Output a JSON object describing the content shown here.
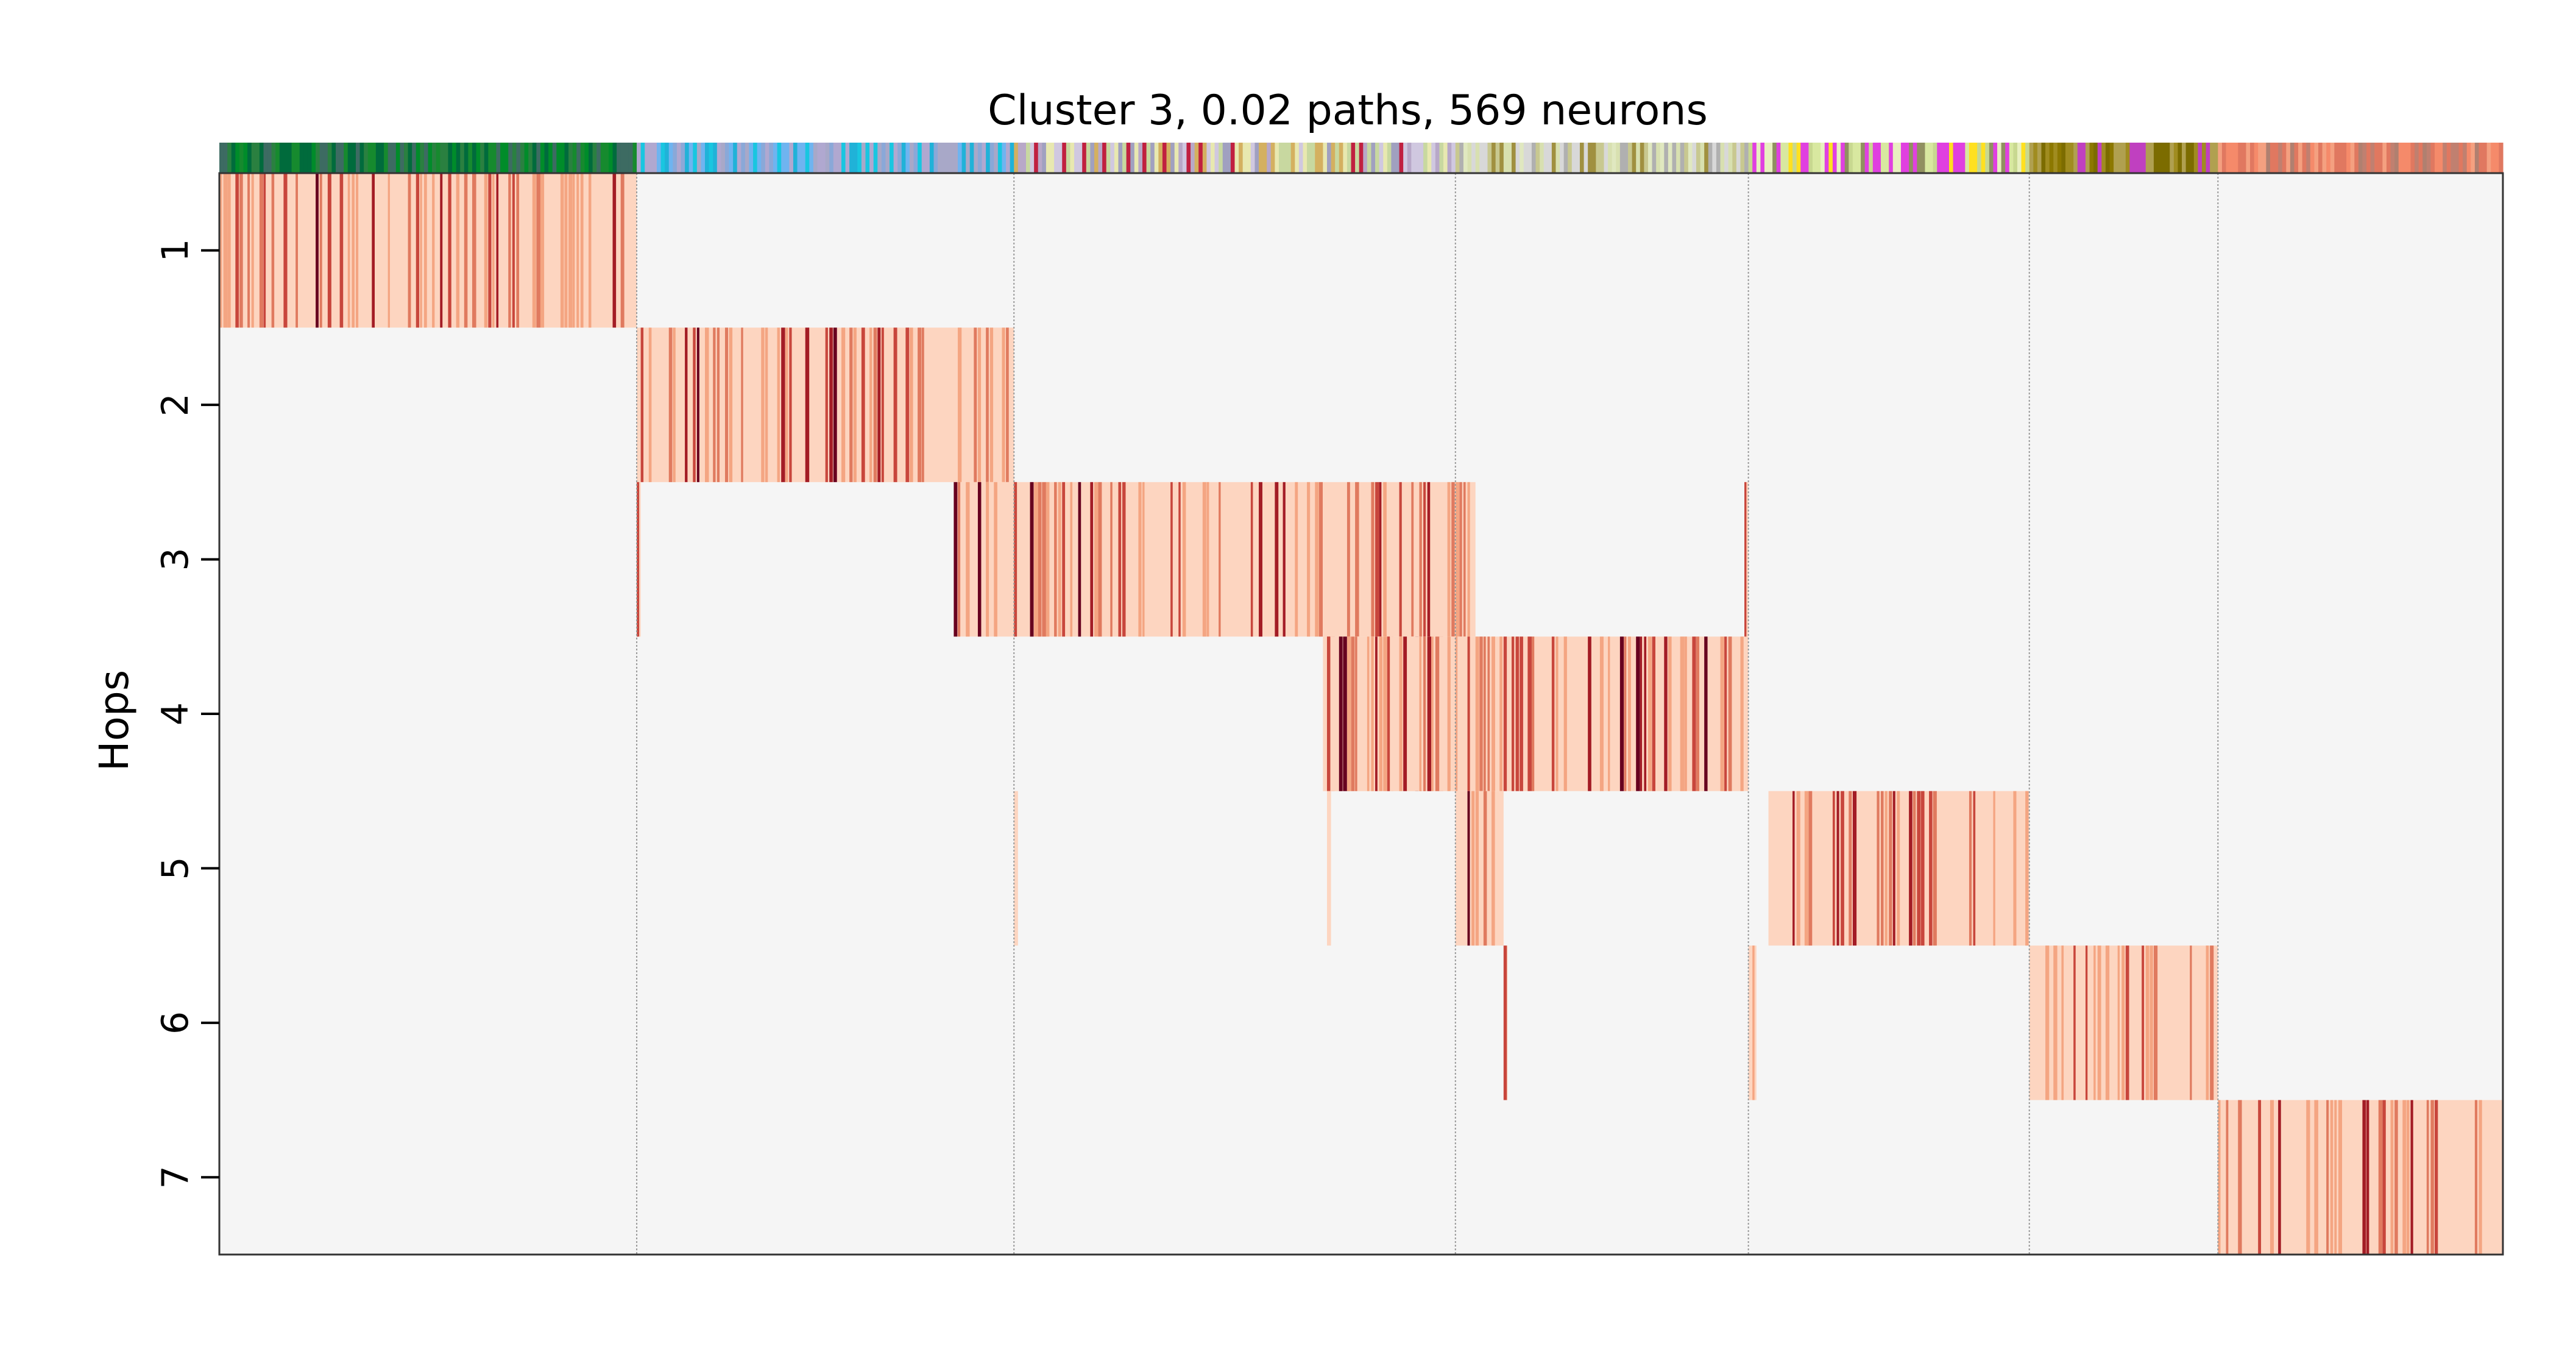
{
  "chart_data": {
    "type": "heatmap",
    "title": "Cluster 3, 0.02 paths, 569 neurons",
    "xlabel": "",
    "ylabel": "Hops",
    "y_ticks": [
      "1",
      "2",
      "3",
      "4",
      "5",
      "6",
      "7"
    ],
    "x_range": [
      0,
      569
    ],
    "grid": true,
    "background_color": "#f5f5f5",
    "colormap": [
      "#fdd5c0",
      "#f4a582",
      "#e07a5f",
      "#c8463c",
      "#a31c25",
      "#67001f"
    ],
    "group_boundaries": [
      104,
      198,
      308,
      381,
      451,
      498
    ],
    "blocks": [
      {
        "hop": 1,
        "x": [
          0,
          104
        ]
      },
      {
        "hop": 2,
        "x": [
          104,
          198
        ]
      },
      {
        "hop": 3,
        "x": [
          183,
          313
        ]
      },
      {
        "hop": 4,
        "x": [
          275,
          381
        ]
      },
      {
        "hop": 5,
        "x": [
          386,
          451
        ]
      },
      {
        "hop": 6,
        "x": [
          451,
          498
        ]
      },
      {
        "hop": 7,
        "x": [
          498,
          569
        ]
      }
    ],
    "small_blocks": [
      {
        "hop": 3,
        "x": [
          104,
          105
        ]
      },
      {
        "hop": 3,
        "x": [
          380,
          381
        ]
      },
      {
        "hop": 4,
        "x": [
          275,
          308
        ]
      },
      {
        "hop": 5,
        "x": [
          198,
          199
        ]
      },
      {
        "hop": 5,
        "x": [
          276,
          277
        ]
      },
      {
        "hop": 5,
        "x": [
          308,
          320
        ]
      },
      {
        "hop": 6,
        "x": [
          320,
          321
        ]
      },
      {
        "hop": 6,
        "x": [
          381,
          383
        ]
      }
    ],
    "color_bar_segments": [
      {
        "x": [
          0,
          104
        ],
        "colors": [
          "#008c2a",
          "#3d6b62",
          "#006b3c",
          "#168a2e",
          "#2a8040"
        ]
      },
      {
        "x": [
          104,
          198
        ],
        "colors": [
          "#a8a8c8",
          "#19c6e0",
          "#6fb4f0",
          "#8aa8d8",
          "#20b2d8",
          "#b0a8d0"
        ]
      },
      {
        "x": [
          198,
          308
        ],
        "colors": [
          "#c8d8a0",
          "#e8e8b0",
          "#b8a8c8",
          "#d0c8e0",
          "#c02040",
          "#d4b060",
          "#a0a0c0"
        ]
      },
      {
        "x": [
          308,
          381
        ],
        "colors": [
          "#d8e0b0",
          "#c8c890",
          "#b0b0b0",
          "#e0e8c0",
          "#a09040",
          "#d8d8d8"
        ]
      },
      {
        "x": [
          381,
          451
        ],
        "colors": [
          "#e8f0c0",
          "#ffe020",
          "#d8e8a0",
          "#909060",
          "#e040e0",
          "#c8d890"
        ]
      },
      {
        "x": [
          451,
          498
        ],
        "colors": [
          "#8c7800",
          "#a08c20",
          "#7c6c00",
          "#b0a050",
          "#c040c0"
        ]
      },
      {
        "x": [
          498,
          569
        ],
        "colors": [
          "#f58a6a",
          "#e07860",
          "#b08070",
          "#f4a080",
          "#c08070"
        ]
      }
    ]
  }
}
